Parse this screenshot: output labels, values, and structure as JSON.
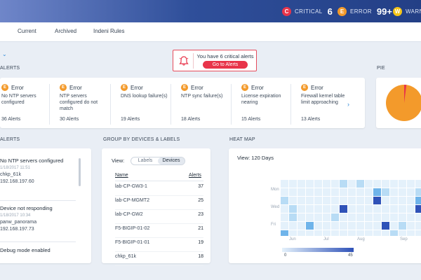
{
  "header": {
    "critical": {
      "letter": "C",
      "label": "CRITICAL",
      "value": "6",
      "color": "#e8344a"
    },
    "error": {
      "letter": "E",
      "label": "ERROR",
      "value": "99+",
      "color": "#f39a2b"
    },
    "warning": {
      "letter": "W",
      "label": "WARNING",
      "color": "#f5c518"
    }
  },
  "tabs": [
    "Current",
    "Archived",
    "Indeni Rules"
  ],
  "banner": {
    "message": "You have 6 critical alerts",
    "button": "Go to Alerts"
  },
  "sections": {
    "top_alerts": "ALERTS",
    "pie": "PIE",
    "alerts_list": "ALERTS",
    "group": "GROUP BY DEVICES & LABELS",
    "heatmap": "HEAT MAP"
  },
  "alert_cards": [
    {
      "badge": "E",
      "type": "Error",
      "desc": "No NTP servers configured",
      "count": "36 Alerts"
    },
    {
      "badge": "E",
      "type": "Error",
      "desc": "NTP servers configured do not match",
      "count": "30 Alerts"
    },
    {
      "badge": "E",
      "type": "Error",
      "desc": "DNS lookup failure(s)",
      "count": "19 Alerts"
    },
    {
      "badge": "E",
      "type": "Error",
      "desc": "NTP sync failure(s)",
      "count": "18 Alerts"
    },
    {
      "badge": "E",
      "type": "Error",
      "desc": "License expiration nearing",
      "count": "15 Alerts"
    },
    {
      "badge": "E",
      "type": "Error",
      "desc": "Firewall kernel table limit approaching",
      "count": "13 Alerts"
    }
  ],
  "pie": {
    "main_color": "#f39a2b",
    "slice_color": "#e8344a",
    "slice_fraction": 0.02
  },
  "alerts_list": [
    {
      "title": "No NTP servers configured",
      "time": "1/18/2017 11:51",
      "device": "chkp_61k",
      "ip": "192.168.197.60"
    },
    {
      "title": "Device not responding",
      "time": "1/18/2017 10:34",
      "device": "panw_panorama",
      "ip": "192.168.197.73"
    },
    {
      "title": "Debug mode enabled"
    }
  ],
  "group": {
    "view_label": "View:",
    "toggle": [
      "Labels",
      "Devices"
    ],
    "selected": "Devices",
    "col_name": "Name",
    "col_alerts": "Alerts",
    "rows": [
      {
        "name": "lab-CP-GW3-1",
        "alerts": "37"
      },
      {
        "name": "lab-CP-MGMT2",
        "alerts": "25"
      },
      {
        "name": "lab-CP-GW2",
        "alerts": "23"
      },
      {
        "name": "F5-BIGIP-01-02",
        "alerts": "21"
      },
      {
        "name": "F5-BIGIP-01-01",
        "alerts": "19"
      },
      {
        "name": "chkp_61k",
        "alerts": "18"
      }
    ]
  },
  "heatmap": {
    "view_label": "View: 120 Days",
    "day_labels": [
      "Mon",
      "Wed",
      "Fri"
    ],
    "month_labels": [
      "Jun",
      "Jul",
      "Aug",
      "Sep"
    ],
    "legend_min": "0",
    "legend_max": "45",
    "color_low": "#e4f1fb",
    "color_high": "#2f52b8"
  }
}
